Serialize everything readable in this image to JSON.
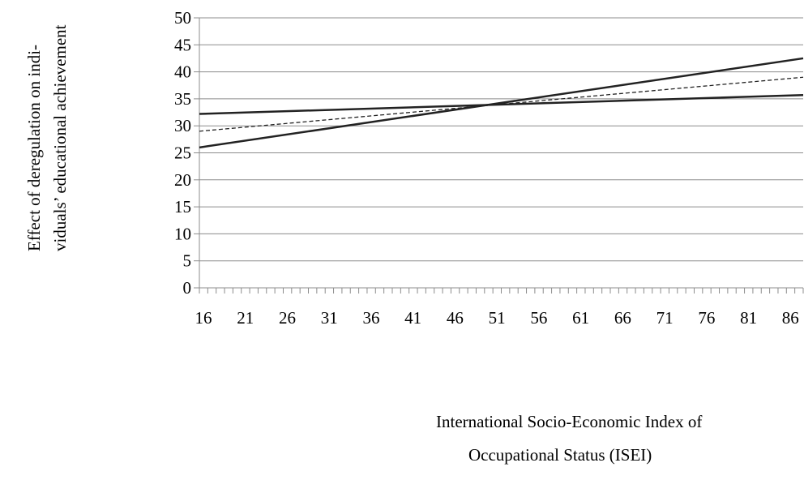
{
  "chart_data": {
    "type": "line",
    "ylabel_lines": [
      "Effect of deregulation on indi-",
      "viduals’ educational achievement"
    ],
    "xlabel_lines": [
      "International Socio-Economic Index of",
      "Occupational Status (ISEI)"
    ],
    "xlim": [
      16,
      88
    ],
    "ylim": [
      0,
      50
    ],
    "yticks": [
      0,
      5,
      10,
      15,
      20,
      25,
      30,
      35,
      40,
      45,
      50
    ],
    "xticks": [
      16,
      21,
      26,
      31,
      36,
      41,
      46,
      51,
      56,
      61,
      66,
      71,
      76,
      81,
      86
    ],
    "grid": "horizontal",
    "legend": "none",
    "series": [
      {
        "x": [
          16,
          88
        ],
        "y": [
          26.0,
          42.5
        ],
        "style": "solid",
        "color": "#222222"
      },
      {
        "x": [
          16,
          88
        ],
        "y": [
          29.0,
          39.0
        ],
        "style": "dashed",
        "color": "#222222"
      },
      {
        "x": [
          16,
          88
        ],
        "y": [
          32.2,
          35.7
        ],
        "style": "solid",
        "color": "#222222"
      }
    ]
  }
}
